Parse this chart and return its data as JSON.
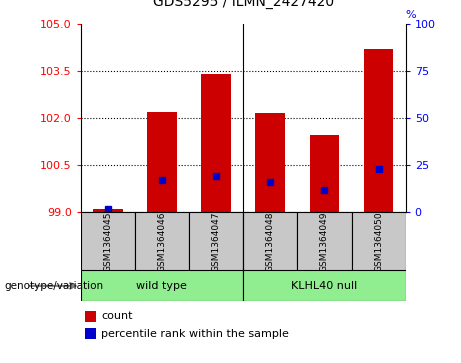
{
  "title": "GDS5295 / ILMN_2427420",
  "samples": [
    "GSM1364045",
    "GSM1364046",
    "GSM1364047",
    "GSM1364048",
    "GSM1364049",
    "GSM1364050"
  ],
  "count_values": [
    99.1,
    102.2,
    103.4,
    102.15,
    101.45,
    104.2
  ],
  "percentile_values": [
    2.0,
    17.0,
    19.0,
    16.0,
    12.0,
    23.0
  ],
  "ylim_left": [
    99,
    105
  ],
  "ylim_right": [
    0,
    100
  ],
  "yticks_left": [
    99,
    100.5,
    102,
    103.5,
    105
  ],
  "yticks_right": [
    0,
    25,
    50,
    75,
    100
  ],
  "baseline": 99,
  "bar_color": "#cc0000",
  "percentile_color": "#0000cc",
  "bar_width": 0.55,
  "wild_type_label": "wild type",
  "klhl40_label": "KLHL40 null",
  "genotype_label": "genotype/variation",
  "legend_count": "count",
  "legend_percentile": "percentile rank within the sample",
  "sample_box_color": "#c8c8c8",
  "group_box_color": "#90ee90",
  "dotted_lines": [
    100.5,
    102,
    103.5
  ]
}
